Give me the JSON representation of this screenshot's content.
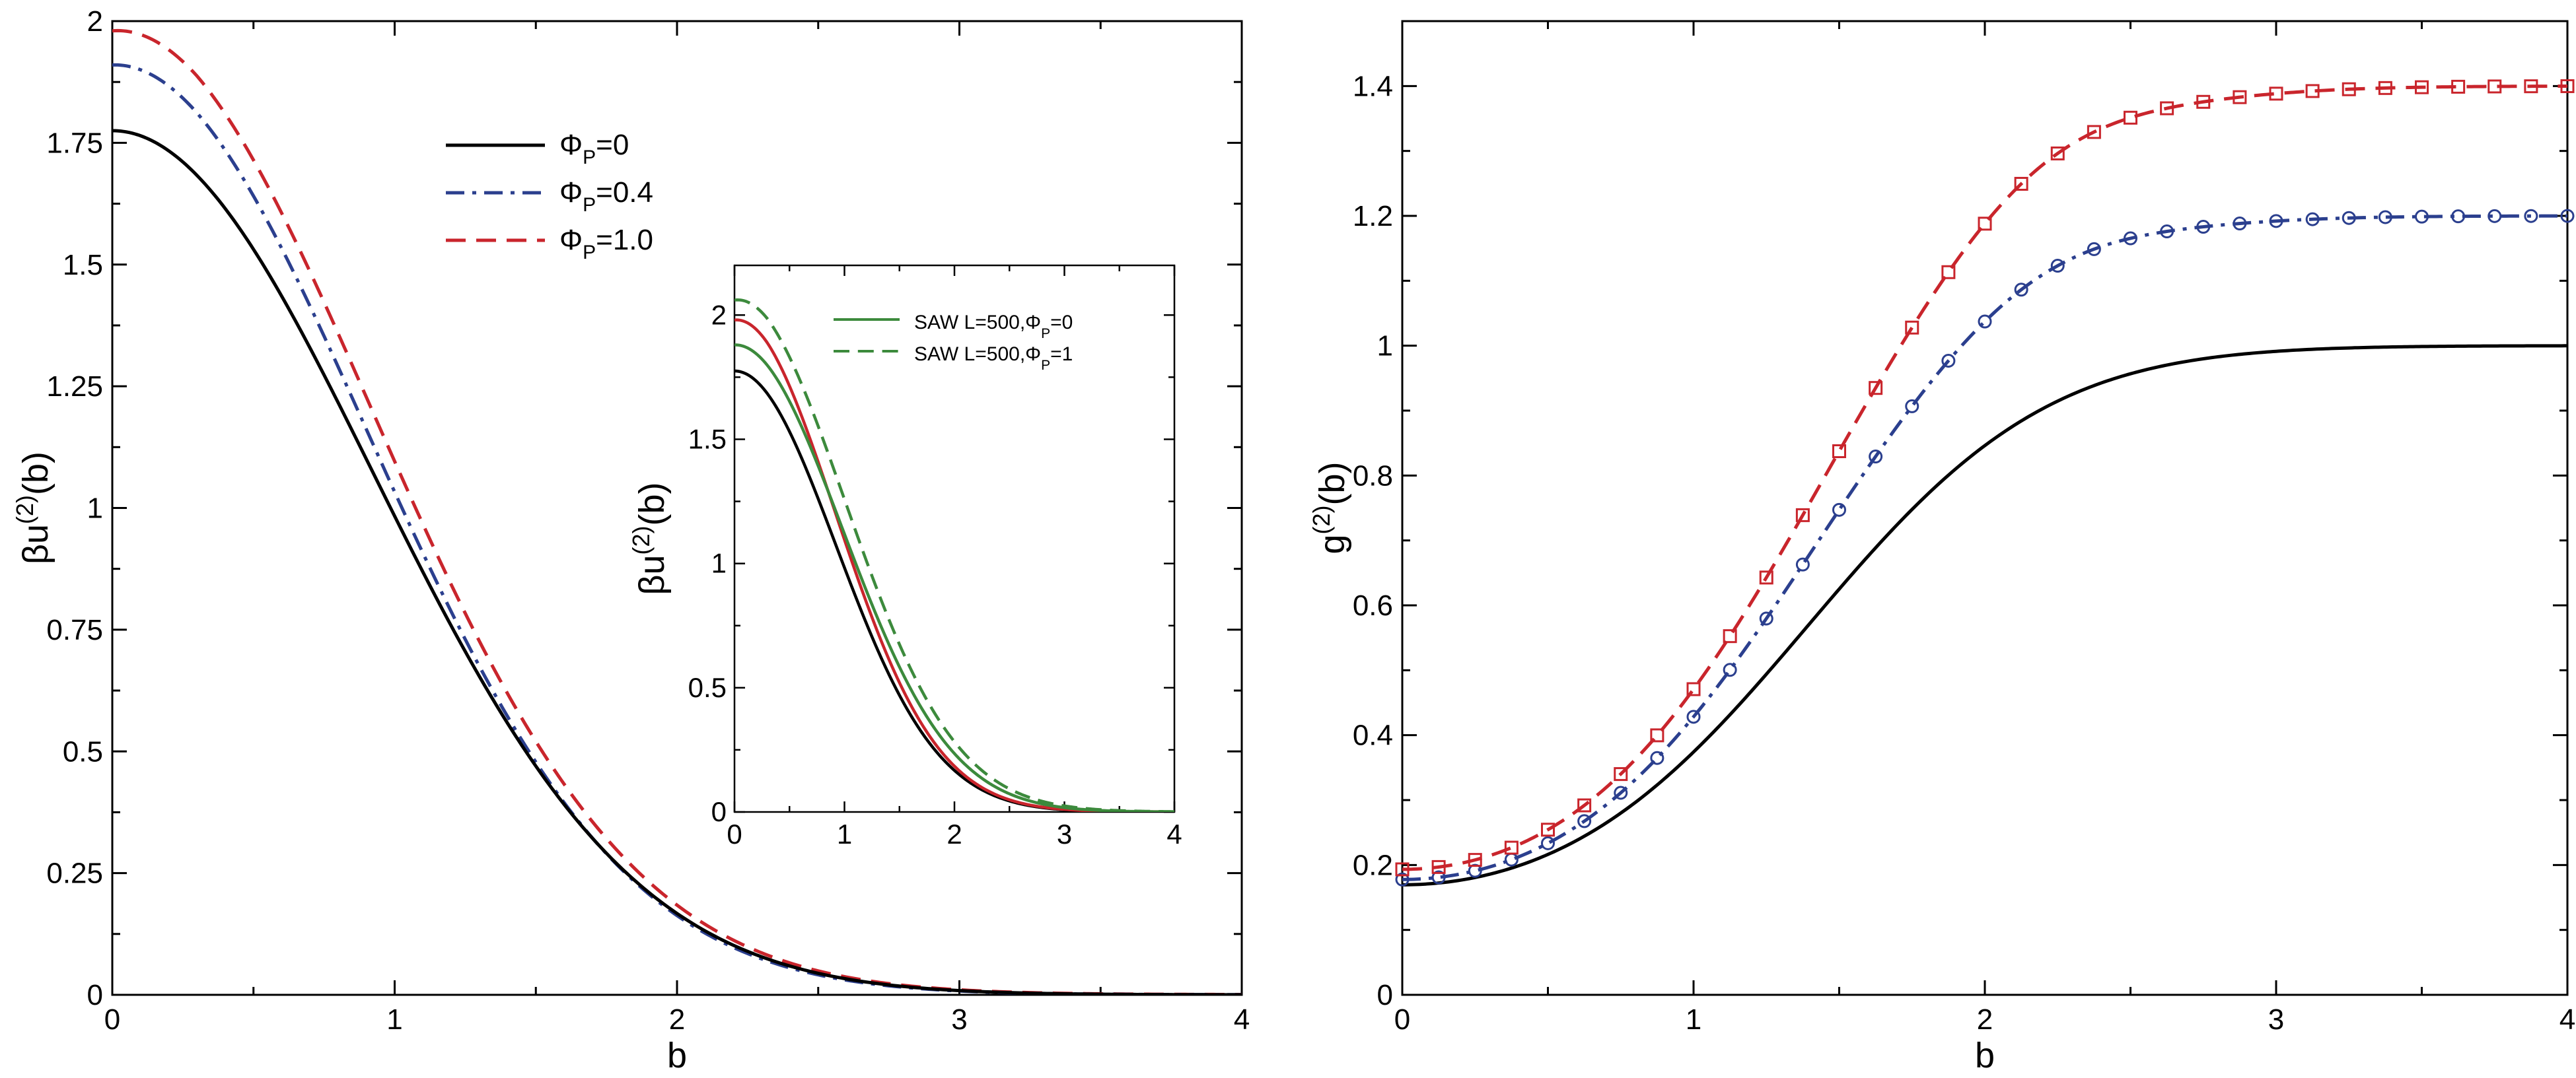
{
  "chart_data": [
    {
      "id": "left",
      "type": "line",
      "xlabel": "b",
      "ylabel": {
        "base": "βu",
        "sup": "(2)",
        "rest": "(b)"
      },
      "xlim": [
        0,
        4
      ],
      "ylim": [
        0,
        2
      ],
      "xticks": [
        0,
        1,
        2,
        3,
        4
      ],
      "xtick_labels": [
        "0",
        "1",
        "2",
        "3",
        "4"
      ],
      "yticks": [
        0,
        0.25,
        0.5,
        0.75,
        1,
        1.25,
        1.5,
        1.75,
        2
      ],
      "ytick_labels": [
        "0",
        "0.25",
        "0.5",
        "0.75",
        "1",
        "1.25",
        "1.5",
        "1.75",
        "2"
      ],
      "legend_position": "upper-center",
      "series": [
        {
          "name": "phi0",
          "label_main": "Φ",
          "label_sub": "P",
          "label_rest": "=0",
          "color": "#000000",
          "style": "solid",
          "amplitude": 1.775,
          "sigma": 0.92,
          "tail": 0.0
        },
        {
          "name": "phi04",
          "label_main": "Φ",
          "label_sub": "P",
          "label_rest": "=0.4",
          "color": "#2b3f8e",
          "style": "dashdot",
          "amplitude": 1.91,
          "sigma": 0.9,
          "tail": 0.006
        },
        {
          "name": "phi10",
          "label_main": "Φ",
          "label_sub": "P",
          "label_rest": "=1.0",
          "color": "#c9252c",
          "style": "dashed",
          "amplitude": 1.98,
          "sigma": 0.915,
          "tail": 0.014
        }
      ]
    },
    {
      "id": "inset",
      "type": "line",
      "xlabel": "",
      "ylabel": {
        "base": "βu",
        "sup": "(2)",
        "rest": "(b)"
      },
      "xlim": [
        0,
        4
      ],
      "ylim": [
        0,
        2.2
      ],
      "xticks": [
        0,
        1,
        2,
        3,
        4
      ],
      "xtick_labels": [
        "0",
        "1",
        "2",
        "3",
        "4"
      ],
      "yticks": [
        0,
        0.5,
        1,
        1.5,
        2
      ],
      "ytick_labels": [
        "0",
        "0.5",
        "1",
        "1.5",
        "2"
      ],
      "legend_position": "top-right",
      "series": [
        {
          "name": "inset-phi0",
          "color": "#000000",
          "style": "solid",
          "amplitude": 1.775,
          "sigma": 0.92,
          "tail": 0.0,
          "legend": false
        },
        {
          "name": "inset-phi10",
          "color": "#c9252c",
          "style": "solid",
          "amplitude": 1.98,
          "sigma": 0.915,
          "tail": 0.014,
          "legend": false
        },
        {
          "name": "saw-phi0",
          "label_main": "SAW L=500,Φ",
          "label_sub": "P",
          "label_rest": "=0",
          "color": "#3c8a3c",
          "style": "solid",
          "amplitude": 1.88,
          "sigma": 0.98,
          "tail": 0.004,
          "legend": true
        },
        {
          "name": "saw-phi1",
          "label_main": "SAW L=500,Φ",
          "label_sub": "P",
          "label_rest": "=1",
          "color": "#3c8a3c",
          "style": "dashed",
          "amplitude": 2.06,
          "sigma": 1.0,
          "tail": 0.02,
          "legend": true
        }
      ]
    },
    {
      "id": "right",
      "type": "line",
      "xlabel": "b",
      "ylabel": {
        "base": "g",
        "sup": "(2)",
        "rest": "(b)"
      },
      "xlim": [
        0,
        4
      ],
      "ylim": [
        0,
        1.5
      ],
      "xticks": [
        0,
        1,
        2,
        3,
        4
      ],
      "xtick_labels": [
        "0",
        "1",
        "2",
        "3",
        "4"
      ],
      "yticks": [
        0,
        0.2,
        0.4,
        0.6,
        0.8,
        1,
        1.2,
        1.4
      ],
      "ytick_labels": [
        "0",
        "0.2",
        "0.4",
        "0.6",
        "0.8",
        "1",
        "1.2",
        "1.4"
      ],
      "series": [
        {
          "name": "g-phi0",
          "color": "#000000",
          "style": "solid",
          "marker": "none",
          "plateau": 1.0,
          "delta": 0.0,
          "uAmp": 1.775,
          "sigma": 0.92
        },
        {
          "name": "g-phi04",
          "color": "#2b3f8e",
          "style": "dashdot",
          "marker": "circle",
          "plateau": 1.2,
          "delta": 0.02,
          "uAmp": 1.91,
          "sigma": 0.9
        },
        {
          "name": "g-phi10",
          "color": "#c9252c",
          "style": "dashed",
          "marker": "square",
          "plateau": 1.4,
          "delta": 0.025,
          "uAmp": 1.98,
          "sigma": 0.915
        }
      ],
      "marker_x_step": 0.125
    }
  ]
}
